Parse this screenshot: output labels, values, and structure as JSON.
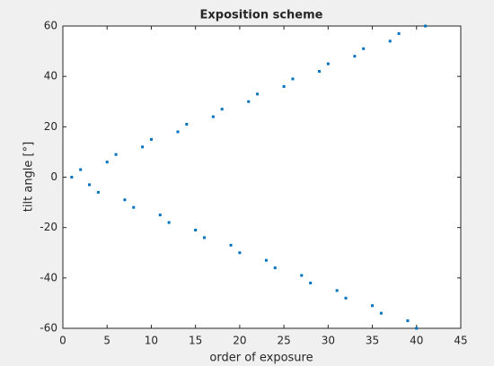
{
  "chart_data": {
    "type": "scatter",
    "title": "Exposition scheme",
    "x_label": "order of exposure",
    "y_label": "tilt angle [°]",
    "x": [
      1,
      2,
      3,
      4,
      5,
      6,
      7,
      8,
      9,
      10,
      11,
      12,
      13,
      14,
      15,
      16,
      17,
      18,
      19,
      20,
      21,
      22,
      23,
      24,
      25,
      26,
      27,
      28,
      29,
      30,
      31,
      32,
      33,
      34,
      35,
      36,
      37,
      38,
      39,
      40,
      41
    ],
    "values": [
      0,
      3,
      -3,
      -6,
      6,
      9,
      -9,
      -12,
      12,
      15,
      -15,
      -18,
      18,
      21,
      -21,
      -24,
      24,
      27,
      -27,
      -30,
      30,
      33,
      -33,
      -36,
      36,
      39,
      -39,
      -42,
      42,
      45,
      -45,
      -48,
      48,
      51,
      -51,
      -54,
      54,
      57,
      -57,
      -60,
      60
    ],
    "color": "#0072bd",
    "xlim": [
      0,
      45
    ],
    "xticks": [
      0,
      5,
      10,
      15,
      20,
      25,
      30,
      35,
      40,
      45
    ],
    "ylim": [
      -60,
      60
    ],
    "yticks": [
      -60,
      -40,
      -20,
      0,
      20,
      40,
      60
    ]
  }
}
